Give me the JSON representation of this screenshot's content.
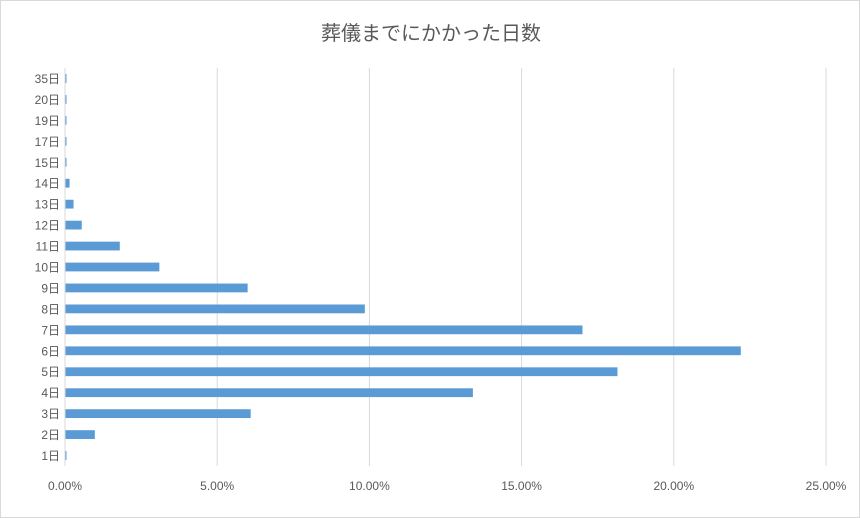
{
  "chart_data": {
    "type": "bar",
    "orientation": "horizontal",
    "title": "葬儀までにかかった日数",
    "xlabel": "",
    "ylabel": "",
    "xlim": [
      0,
      25
    ],
    "x_ticks": [
      "0.00%",
      "5.00%",
      "10.00%",
      "15.00%",
      "20.00%",
      "25.00%"
    ],
    "grid": true,
    "legend": "none",
    "bar_color": "#5b9bd5",
    "categories": [
      "1日",
      "2日",
      "3日",
      "4日",
      "5日",
      "6日",
      "7日",
      "8日",
      "9日",
      "10日",
      "11日",
      "12日",
      "13日",
      "14日",
      "15日",
      "17日",
      "19日",
      "20日",
      "35日"
    ],
    "values": [
      0.05,
      0.98,
      6.1,
      13.4,
      18.15,
      22.2,
      17.0,
      9.85,
      6.0,
      3.1,
      1.8,
      0.55,
      0.28,
      0.15,
      0.05,
      0.05,
      0.05,
      0.05,
      0.05
    ]
  }
}
